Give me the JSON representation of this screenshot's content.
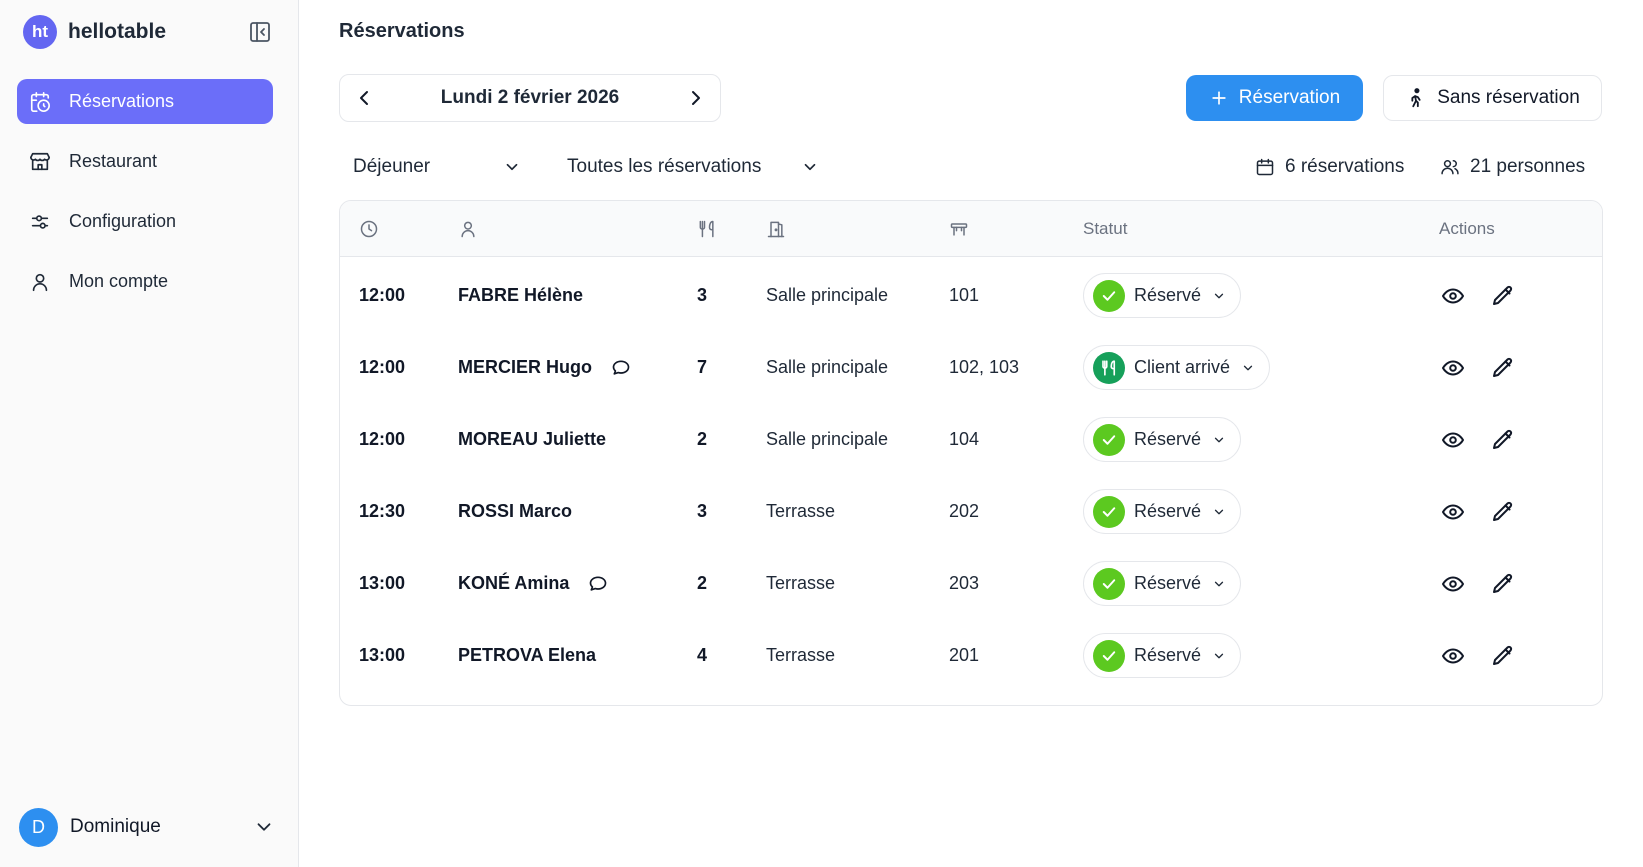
{
  "app": {
    "logo_text": "ht",
    "name": "hellotable"
  },
  "sidebar": {
    "items": [
      {
        "label": "Réservations",
        "icon": "calendar-clock-icon",
        "active": true
      },
      {
        "label": "Restaurant",
        "icon": "store-icon",
        "active": false
      },
      {
        "label": "Configuration",
        "icon": "sliders-icon",
        "active": false
      },
      {
        "label": "Mon compte",
        "icon": "user-icon",
        "active": false
      }
    ],
    "user": {
      "initial": "D",
      "name": "Dominique"
    }
  },
  "header": {
    "title": "Réservations"
  },
  "date_nav": {
    "label": "Lundi 2 février 2026"
  },
  "toolbar": {
    "new_reservation_label": "Réservation",
    "walk_in_label": "Sans réservation"
  },
  "filters": {
    "service": "Déjeuner",
    "type": "Toutes les réservations"
  },
  "stats": {
    "reservations": "6 réservations",
    "persons": "21 personnes"
  },
  "table": {
    "headers": {
      "time_icon": "clock-icon",
      "name_icon": "user-icon",
      "covers_icon": "utensils-icon",
      "room_icon": "door-icon",
      "table_icon": "table-icon",
      "status": "Statut",
      "actions": "Actions"
    },
    "rows": [
      {
        "time": "12:00",
        "name": "FABRE Hélène",
        "comment": false,
        "covers": "3",
        "room": "Salle principale",
        "tables": "101",
        "status": "Réservé",
        "status_kind": "reserved"
      },
      {
        "time": "12:00",
        "name": "MERCIER Hugo",
        "comment": true,
        "covers": "7",
        "room": "Salle principale",
        "tables": "102, 103",
        "status": "Client arrivé",
        "status_kind": "arrived"
      },
      {
        "time": "12:00",
        "name": "MOREAU Juliette",
        "comment": false,
        "covers": "2",
        "room": "Salle principale",
        "tables": "104",
        "status": "Réservé",
        "status_kind": "reserved"
      },
      {
        "time": "12:30",
        "name": "ROSSI Marco",
        "comment": false,
        "covers": "3",
        "room": "Terrasse",
        "tables": "202",
        "status": "Réservé",
        "status_kind": "reserved"
      },
      {
        "time": "13:00",
        "name": "KONÉ Amina",
        "comment": true,
        "covers": "2",
        "room": "Terrasse",
        "tables": "203",
        "status": "Réservé",
        "status_kind": "reserved"
      },
      {
        "time": "13:00",
        "name": "PETROVA Elena",
        "comment": false,
        "covers": "4",
        "room": "Terrasse",
        "tables": "201",
        "status": "Réservé",
        "status_kind": "reserved"
      }
    ]
  },
  "colors": {
    "accent": "#6b6ef9",
    "primary_button": "#2d8ff0",
    "reserved_status": "#5cc920",
    "arrived_status": "#16a05a"
  }
}
